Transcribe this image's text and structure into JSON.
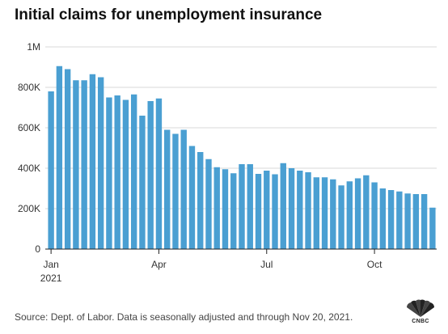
{
  "title": "Initial claims for unemployment insurance",
  "source": "Source: Dept. of Labor. Data is seasonally adjusted and through Nov 20, 2021.",
  "logo": {
    "name": "CNBC",
    "icon": "peacock-logo-icon"
  },
  "colors": {
    "bar": "#4a9fd2",
    "grid": "#d9d9d9",
    "axis": "#222222",
    "text": "#333333"
  },
  "chart_data": {
    "type": "bar",
    "xlabel": "",
    "ylabel": "",
    "ylim": [
      0,
      1000000
    ],
    "yticks": [
      {
        "value": 0,
        "label": "0"
      },
      {
        "value": 200000,
        "label": "200K"
      },
      {
        "value": 400000,
        "label": "400K"
      },
      {
        "value": 600000,
        "label": "600K"
      },
      {
        "value": 800000,
        "label": "800K"
      },
      {
        "value": 1000000,
        "label": "1M"
      }
    ],
    "xticks": [
      {
        "index": 0,
        "label": "Jan",
        "sublabel": "2021"
      },
      {
        "index": 13,
        "label": "Apr",
        "sublabel": ""
      },
      {
        "index": 26,
        "label": "Jul",
        "sublabel": ""
      },
      {
        "index": 39,
        "label": "Oct",
        "sublabel": ""
      }
    ],
    "grid": true,
    "values": [
      780000,
      905000,
      890000,
      835000,
      835000,
      865000,
      850000,
      750000,
      760000,
      738000,
      765000,
      660000,
      732000,
      745000,
      590000,
      570000,
      590000,
      510000,
      480000,
      445000,
      405000,
      395000,
      375000,
      420000,
      420000,
      372000,
      388000,
      370000,
      425000,
      400000,
      388000,
      380000,
      355000,
      355000,
      345000,
      315000,
      335000,
      350000,
      365000,
      330000,
      300000,
      292000,
      285000,
      275000,
      272000,
      272000,
      205000
    ]
  }
}
